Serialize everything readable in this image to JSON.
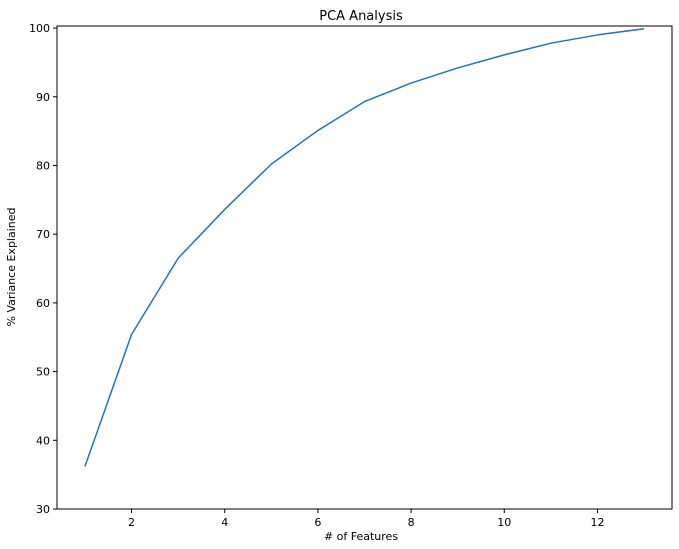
{
  "chart_data": {
    "type": "line",
    "title": "PCA Analysis",
    "xlabel": "# of Features",
    "ylabel": "% Variance Explained",
    "xlim": [
      0.4,
      13.6
    ],
    "ylim": [
      30,
      100.3
    ],
    "xticks": [
      2,
      4,
      6,
      8,
      10,
      12
    ],
    "yticks": [
      30,
      40,
      50,
      60,
      70,
      80,
      90,
      100
    ],
    "grid": false,
    "legend": "none",
    "series": [
      {
        "color": "#1f77b4",
        "x": [
          1,
          2,
          3,
          4,
          5,
          6,
          7,
          8,
          9,
          10,
          11,
          12,
          13
        ],
        "y": [
          36.2,
          55.4,
          66.5,
          73.6,
          80.2,
          85.1,
          89.3,
          92.0,
          94.2,
          96.1,
          97.8,
          99.0,
          99.9
        ]
      }
    ]
  }
}
